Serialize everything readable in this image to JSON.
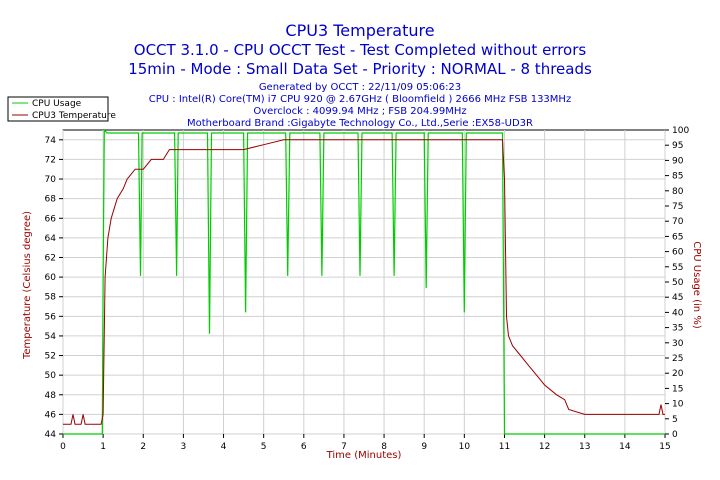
{
  "chart_data": {
    "type": "line",
    "title": "CPU3 Temperature",
    "subtitle_1": "OCCT 3.1.0 - CPU OCCT Test - Test Completed without errors",
    "subtitle_2": "15min - Mode : Small Data Set - Priority : NORMAL - 8 threads",
    "info_lines": [
      "Generated by OCCT : 22/11/09 05:06:23",
      "CPU : Intel(R) Core(TM) i7 CPU 920 @ 2.67GHz ( Bloomfield ) 2666 MHz FSB 133MHz",
      "Overclock : 4099.94 MHz ; FSB 204.99MHz",
      "Motherboard Brand :Gigabyte Technology Co., Ltd.,Serie :EX58-UD3R"
    ],
    "xlabel": "Time (Minutes)",
    "ylabel_left": "Temperature (Celsius degree)",
    "ylabel_right": "CPU Usage (in %)",
    "xlim": [
      0,
      15
    ],
    "ylim_left": [
      44,
      75
    ],
    "ylim_right": [
      0,
      100
    ],
    "x_ticks": [
      0,
      1,
      2,
      3,
      4,
      5,
      6,
      7,
      8,
      9,
      10,
      11,
      12,
      13,
      14,
      15
    ],
    "y_ticks_left": [
      44,
      46,
      48,
      50,
      52,
      54,
      56,
      58,
      60,
      62,
      64,
      66,
      68,
      70,
      72,
      74
    ],
    "y_ticks_right": [
      0,
      5,
      10,
      15,
      20,
      25,
      30,
      35,
      40,
      45,
      50,
      55,
      60,
      65,
      70,
      75,
      80,
      85,
      90,
      95,
      100
    ],
    "grid": true,
    "legend_position": "top-left",
    "series": [
      {
        "name": "CPU Usage",
        "color": "#00cc00",
        "axis": "right",
        "points": [
          [
            0,
            0
          ],
          [
            0.98,
            0
          ],
          [
            1.0,
            50
          ],
          [
            1.03,
            100
          ],
          [
            1.1,
            99
          ],
          [
            1.88,
            99
          ],
          [
            1.93,
            52
          ],
          [
            1.97,
            99
          ],
          [
            2.78,
            99
          ],
          [
            2.83,
            52
          ],
          [
            2.87,
            99
          ],
          [
            3.6,
            99
          ],
          [
            3.65,
            33
          ],
          [
            3.7,
            99
          ],
          [
            4.5,
            99
          ],
          [
            4.55,
            40
          ],
          [
            4.6,
            99
          ],
          [
            5.55,
            99
          ],
          [
            5.6,
            52
          ],
          [
            5.65,
            99
          ],
          [
            6.4,
            99
          ],
          [
            6.45,
            52
          ],
          [
            6.5,
            99
          ],
          [
            7.35,
            99
          ],
          [
            7.4,
            52
          ],
          [
            7.45,
            99
          ],
          [
            8.2,
            99
          ],
          [
            8.25,
            52
          ],
          [
            8.3,
            99
          ],
          [
            9.0,
            99
          ],
          [
            9.05,
            48
          ],
          [
            9.1,
            99
          ],
          [
            9.95,
            99
          ],
          [
            10.0,
            40
          ],
          [
            10.05,
            99
          ],
          [
            10.95,
            99
          ],
          [
            11.0,
            0
          ],
          [
            15,
            0
          ]
        ]
      },
      {
        "name": "CPU3 Temperature",
        "color": "#990000",
        "axis": "left",
        "points": [
          [
            0,
            45
          ],
          [
            0.2,
            45
          ],
          [
            0.25,
            46
          ],
          [
            0.3,
            45
          ],
          [
            0.45,
            45
          ],
          [
            0.5,
            46
          ],
          [
            0.55,
            45
          ],
          [
            0.95,
            45
          ],
          [
            1.0,
            46
          ],
          [
            1.05,
            60
          ],
          [
            1.12,
            64
          ],
          [
            1.2,
            66
          ],
          [
            1.35,
            68
          ],
          [
            1.5,
            69
          ],
          [
            1.6,
            70
          ],
          [
            1.8,
            71
          ],
          [
            2.0,
            71
          ],
          [
            2.2,
            72
          ],
          [
            2.5,
            72
          ],
          [
            2.65,
            73
          ],
          [
            3.0,
            73
          ],
          [
            3.5,
            73
          ],
          [
            4.0,
            73
          ],
          [
            4.5,
            73
          ],
          [
            5.0,
            73.5
          ],
          [
            5.5,
            74
          ],
          [
            6.0,
            74
          ],
          [
            7.0,
            74
          ],
          [
            8.0,
            74
          ],
          [
            9.0,
            74
          ],
          [
            10.0,
            74
          ],
          [
            10.95,
            74
          ],
          [
            11.0,
            70
          ],
          [
            11.05,
            56
          ],
          [
            11.1,
            54
          ],
          [
            11.2,
            53
          ],
          [
            11.4,
            52
          ],
          [
            11.6,
            51
          ],
          [
            11.8,
            50
          ],
          [
            12.0,
            49
          ],
          [
            12.3,
            48
          ],
          [
            12.5,
            47.5
          ],
          [
            12.6,
            46.5
          ],
          [
            13.0,
            46
          ],
          [
            14.0,
            46
          ],
          [
            14.85,
            46
          ],
          [
            14.9,
            47
          ],
          [
            14.95,
            46
          ],
          [
            15,
            46
          ]
        ]
      }
    ]
  }
}
